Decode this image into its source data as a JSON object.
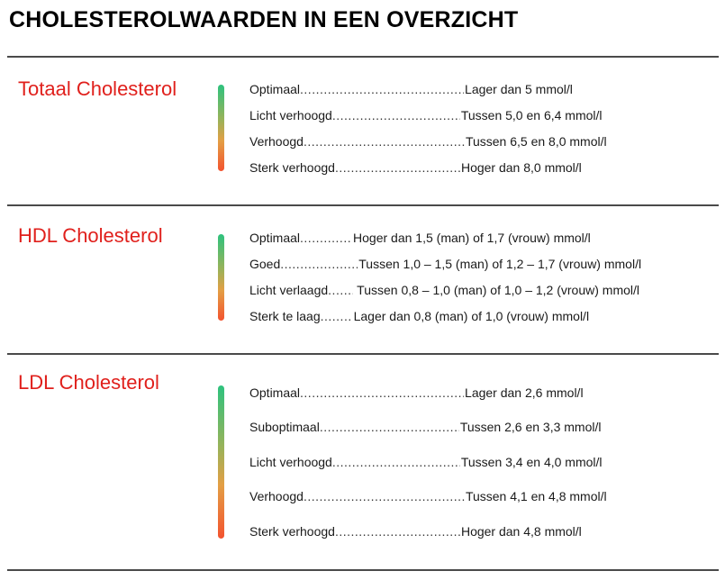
{
  "title": "CHOLESTEROLWAARDEN IN EEN OVERZICHT",
  "colors": {
    "heading_red": "#e0201c",
    "gradient_top": "#2ec27e",
    "gradient_bottom": "#f3532f"
  },
  "sections": [
    {
      "title": "Totaal Cholesterol",
      "rows": [
        {
          "label": "Optimaal",
          "value": "Lager dan 5 mmol/l"
        },
        {
          "label": "Licht verhoogd",
          "value": "Tussen 5,0 en 6,4 mmol/l"
        },
        {
          "label": "Verhoogd",
          "value": "Tussen 6,5 en 8,0 mmol/l"
        },
        {
          "label": "Sterk verhoogd",
          "value": "Hoger dan 8,0 mmol/l"
        }
      ]
    },
    {
      "title": "HDL Cholesterol",
      "rows": [
        {
          "label": "Optimaal",
          "value": "Hoger dan 1,5 (man) of 1,7 (vrouw) mmol/l"
        },
        {
          "label": "Goed",
          "value": "Tussen 1,0 – 1,5 (man) of 1,2 – 1,7 (vrouw) mmol/l"
        },
        {
          "label": "Licht verlaagd",
          "value": "Tussen 0,8 – 1,0 (man) of 1,0 – 1,2 (vrouw) mmol/l"
        },
        {
          "label": "Sterk te laag",
          "value": "Lager dan 0,8 (man) of 1,0 (vrouw) mmol/l"
        }
      ]
    },
    {
      "title": "LDL Cholesterol",
      "rows": [
        {
          "label": "Optimaal",
          "value": "Lager dan 2,6 mmol/l"
        },
        {
          "label": "Suboptimaal",
          "value": "Tussen 2,6 en 3,3 mmol/l"
        },
        {
          "label": "Licht verhoogd",
          "value": "Tussen 3,4 en 4,0 mmol/l"
        },
        {
          "label": "Verhoogd",
          "value": "Tussen 4,1 en 4,8 mmol/l"
        },
        {
          "label": "Sterk verhoogd",
          "value": "Hoger dan 4,8 mmol/l"
        }
      ]
    }
  ]
}
